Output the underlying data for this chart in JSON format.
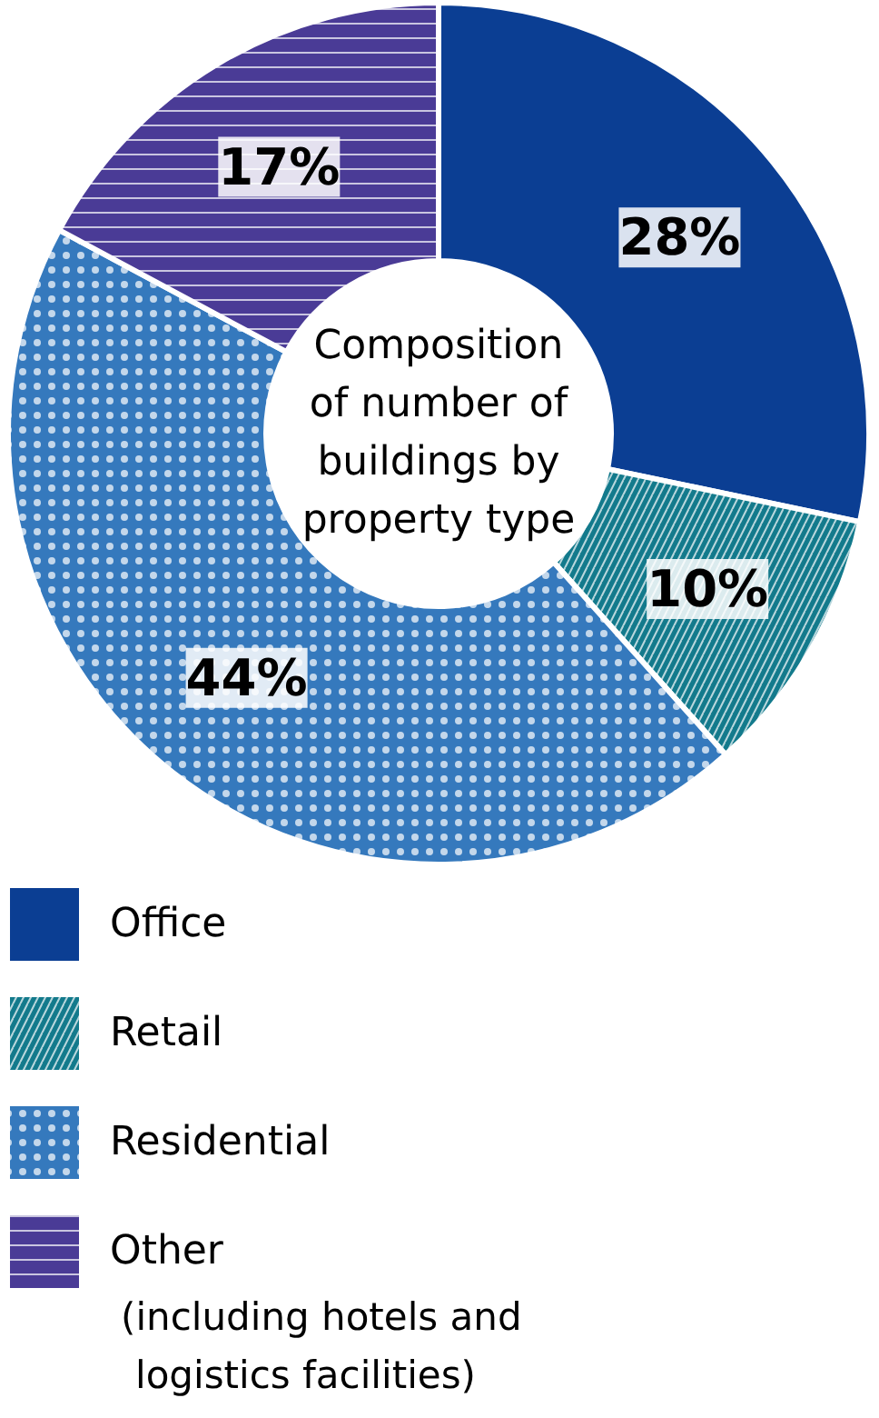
{
  "chart_data": {
    "type": "donut",
    "title": "Composition of number of buildings by property type",
    "categories": [
      "Office",
      "Retail",
      "Residential",
      "Other (including hotels and logistics facilities)"
    ],
    "values": [
      28,
      10,
      44,
      17
    ],
    "value_labels": [
      "28%",
      "10%",
      "44%",
      "17%"
    ],
    "colors": [
      "#0b3e93",
      "#137a8c",
      "#3579bd",
      "#4a3b96"
    ],
    "legend": "bottom"
  }
}
